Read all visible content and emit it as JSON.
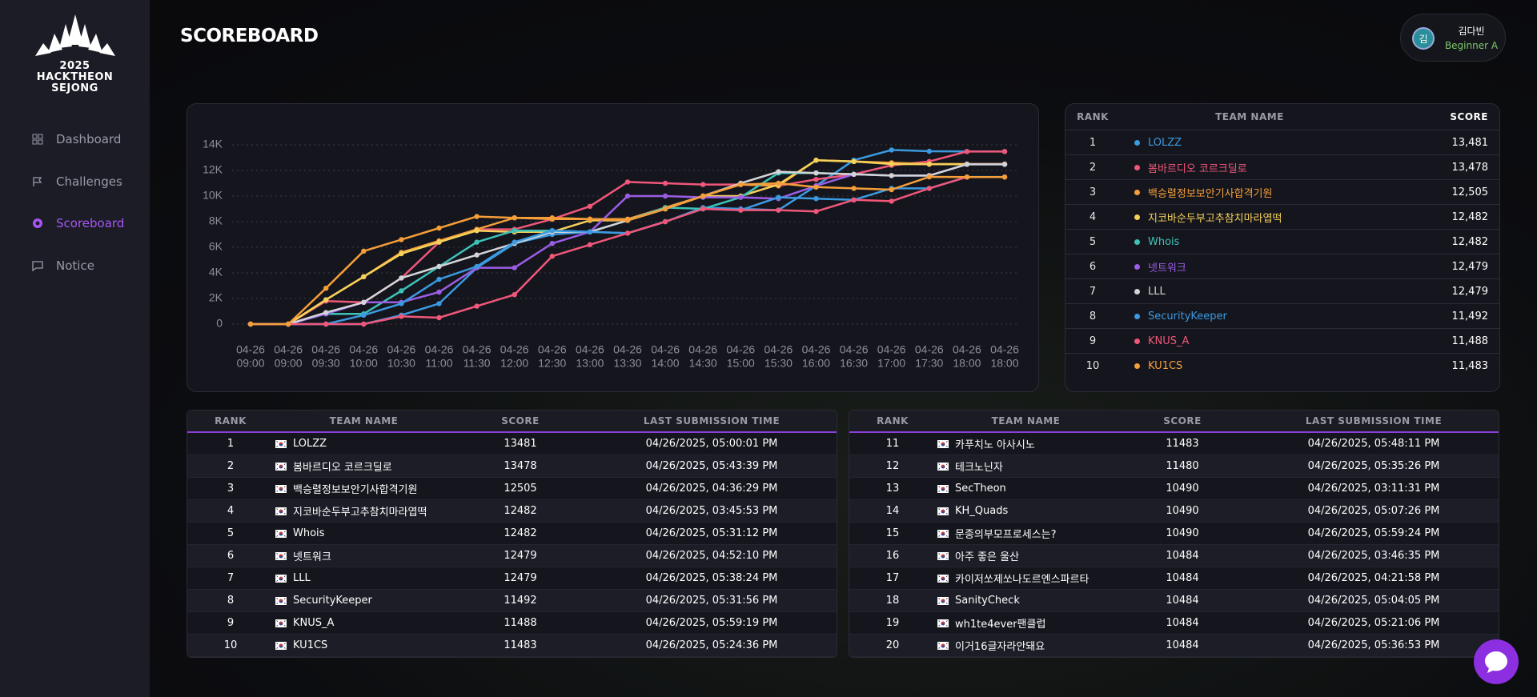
{
  "sidebar": {
    "logo": [
      "2025",
      "HACKTHEON",
      "SEJONG"
    ],
    "nav": [
      "Dashboard",
      "Challenges",
      "Scoreboard",
      "Notice"
    ]
  },
  "header": {
    "title": "SCOREBOARD"
  },
  "user": {
    "avatar": "김",
    "name": "김다빈",
    "level": "Beginner A"
  },
  "chart_data": {
    "type": "line",
    "categories": [
      [
        "04-26",
        "09:00"
      ],
      [
        "04-26",
        "09:00"
      ],
      [
        "04-26",
        "09:30"
      ],
      [
        "04-26",
        "10:00"
      ],
      [
        "04-26",
        "10:30"
      ],
      [
        "04-26",
        "11:00"
      ],
      [
        "04-26",
        "11:30"
      ],
      [
        "04-26",
        "12:00"
      ],
      [
        "04-26",
        "12:30"
      ],
      [
        "04-26",
        "13:00"
      ],
      [
        "04-26",
        "13:30"
      ],
      [
        "04-26",
        "14:00"
      ],
      [
        "04-26",
        "14:30"
      ],
      [
        "04-26",
        "15:00"
      ],
      [
        "04-26",
        "15:30"
      ],
      [
        "04-26",
        "16:00"
      ],
      [
        "04-26",
        "16:30"
      ],
      [
        "04-26",
        "17:00"
      ],
      [
        "04-26",
        "17:30"
      ],
      [
        "04-26",
        "18:00"
      ],
      [
        "04-26",
        "18:00"
      ]
    ],
    "ylim": [
      0,
      14000
    ],
    "yticks": [
      0,
      {
        "value": 2000,
        "label": "2K"
      },
      {
        "value": 4000,
        "label": "4K"
      },
      {
        "value": 6000,
        "label": "6K"
      },
      {
        "value": 8000,
        "label": "8K"
      },
      {
        "value": 10000,
        "label": "10K"
      },
      {
        "value": 12000,
        "label": "12K"
      },
      {
        "value": 14000,
        "label": "14K"
      }
    ],
    "grid": true,
    "series": [
      {
        "name": "LOLZZ",
        "color": "#3b9ae1",
        "values": [
          0,
          0,
          0,
          0,
          700,
          1600,
          4400,
          6300,
          7000,
          7200,
          7100,
          8000,
          9100,
          9000,
          8900,
          10800,
          12800,
          13600,
          13500,
          13481,
          13481
        ]
      },
      {
        "name": "봄바르디오 코르크딜로",
        "color": "#f0577a",
        "values": [
          0,
          0,
          1800,
          1700,
          3600,
          6400,
          7400,
          7400,
          8200,
          9200,
          11100,
          11000,
          10900,
          10900,
          10800,
          11300,
          11700,
          12400,
          12700,
          13478,
          13478
        ]
      },
      {
        "name": "백승렬정보보안기사합격기원",
        "color": "#f59e3a",
        "values": [
          0,
          0,
          1900,
          3700,
          5600,
          6500,
          7400,
          8300,
          8300,
          8200,
          8200,
          9100,
          10000,
          10900,
          10800,
          12800,
          12700,
          12600,
          12500,
          12505,
          12505
        ]
      },
      {
        "name": "지코바순두부고추참치마라엽떡",
        "color": "#f5d15a",
        "values": [
          0,
          0,
          1900,
          3700,
          5500,
          6400,
          7300,
          7200,
          7200,
          8100,
          8100,
          9000,
          10000,
          10000,
          10900,
          12800,
          12700,
          12500,
          12482,
          12482,
          12482
        ]
      },
      {
        "name": "Whois",
        "color": "#3dc2b8",
        "values": [
          0,
          0,
          800,
          800,
          2600,
          4500,
          6400,
          7300,
          7300,
          7200,
          8100,
          9100,
          9000,
          9900,
          11800,
          11800,
          11700,
          11600,
          11600,
          12482,
          12482
        ]
      },
      {
        "name": "넷트워크",
        "color": "#9b5de5",
        "values": [
          0,
          0,
          800,
          1700,
          1700,
          2500,
          4400,
          4400,
          6300,
          7200,
          10000,
          10000,
          9900,
          9900,
          9800,
          10800,
          11700,
          11600,
          11600,
          12479,
          12479
        ]
      },
      {
        "name": "LLL",
        "color": "#d4d4d8",
        "values": [
          0,
          0,
          900,
          1700,
          3600,
          4500,
          5400,
          6300,
          7200,
          7200,
          8100,
          9000,
          10000,
          11000,
          11900,
          11800,
          11700,
          11600,
          11600,
          12479,
          12479
        ]
      },
      {
        "name": "SecurityKeeper",
        "color": "#3b9ae1",
        "values": [
          0,
          0,
          0,
          700,
          1600,
          3500,
          4500,
          6400,
          7300,
          7200,
          7100,
          8000,
          9000,
          8900,
          9900,
          9800,
          9700,
          10600,
          10600,
          11492,
          11492
        ]
      },
      {
        "name": "KNUS_A",
        "color": "#f0577a",
        "values": [
          0,
          0,
          0,
          0,
          600,
          500,
          1400,
          2300,
          5300,
          6200,
          7100,
          8000,
          9000,
          8900,
          8900,
          8800,
          9700,
          9600,
          10600,
          11488,
          11488
        ]
      },
      {
        "name": "KU1CS",
        "color": "#f59e3a",
        "values": [
          0,
          0,
          2800,
          5700,
          6600,
          7500,
          8400,
          8300,
          8200,
          8200,
          8100,
          9000,
          10000,
          10900,
          11000,
          10700,
          10600,
          10500,
          11500,
          11483,
          11483
        ]
      }
    ]
  },
  "ranking": {
    "columns": [
      "RANK",
      "TEAM NAME",
      "SCORE"
    ],
    "rows": [
      [
        1,
        "LOLZZ",
        "13,481"
      ],
      [
        2,
        "봄바르디오 코르크딜로",
        "13,478"
      ],
      [
        3,
        "백승렬정보보안기사합격기원",
        "12,505"
      ],
      [
        4,
        "지코바순두부고추참치마라엽떡",
        "12,482"
      ],
      [
        5,
        "Whois",
        "12,482"
      ],
      [
        6,
        "넷트워크",
        "12,479"
      ],
      [
        7,
        "LLL",
        "12,479"
      ],
      [
        8,
        "SecurityKeeper",
        "11,492"
      ],
      [
        9,
        "KNUS_A",
        "11,488"
      ],
      [
        10,
        "KU1CS",
        "11,483"
      ]
    ]
  },
  "tables": [
    {
      "columns": [
        "RANK",
        "TEAM NAME",
        "SCORE",
        "LAST SUBMISSION TIME"
      ],
      "rows": [
        [
          1,
          "LOLZZ",
          13481,
          "04/26/2025, 05:00:01 PM"
        ],
        [
          2,
          "봄바르디오 코르크딜로",
          13478,
          "04/26/2025, 05:43:39 PM"
        ],
        [
          3,
          "백승렬정보보안기사합격기원",
          12505,
          "04/26/2025, 04:36:29 PM"
        ],
        [
          4,
          "지코바순두부고추참치마라엽떡",
          12482,
          "04/26/2025, 03:45:53 PM"
        ],
        [
          5,
          "Whois",
          12482,
          "04/26/2025, 05:31:12 PM"
        ],
        [
          6,
          "넷트워크",
          12479,
          "04/26/2025, 04:52:10 PM"
        ],
        [
          7,
          "LLL",
          12479,
          "04/26/2025, 05:38:24 PM"
        ],
        [
          8,
          "SecurityKeeper",
          11492,
          "04/26/2025, 05:31:56 PM"
        ],
        [
          9,
          "KNUS_A",
          11488,
          "04/26/2025, 05:59:19 PM"
        ],
        [
          10,
          "KU1CS",
          11483,
          "04/26/2025, 05:24:36 PM"
        ]
      ]
    },
    {
      "columns": [
        "RANK",
        "TEAM NAME",
        "SCORE",
        "LAST SUBMISSION TIME"
      ],
      "rows": [
        [
          11,
          "카푸치노 아사시노",
          11483,
          "04/26/2025, 05:48:11 PM"
        ],
        [
          12,
          "테크노닌자",
          11480,
          "04/26/2025, 05:35:26 PM"
        ],
        [
          13,
          "SecTheon",
          10490,
          "04/26/2025, 03:11:31 PM"
        ],
        [
          14,
          "KH_Quads",
          10490,
          "04/26/2025, 05:07:26 PM"
        ],
        [
          15,
          "문종의부모프로세스는?",
          10490,
          "04/26/2025, 05:59:24 PM"
        ],
        [
          16,
          "아주 좋은 울산",
          10484,
          "04/26/2025, 03:46:35 PM"
        ],
        [
          17,
          "카이저쏘제쏘나도르엔스파르타",
          10484,
          "04/26/2025, 04:21:58 PM"
        ],
        [
          18,
          "SanityCheck",
          10484,
          "04/26/2025, 05:04:05 PM"
        ],
        [
          19,
          "wh1te4ever팬클럽",
          10484,
          "04/26/2025, 05:21:06 PM"
        ],
        [
          20,
          "이거16글자라안돼요",
          10484,
          "04/26/2025, 05:36:53 PM"
        ]
      ]
    }
  ]
}
